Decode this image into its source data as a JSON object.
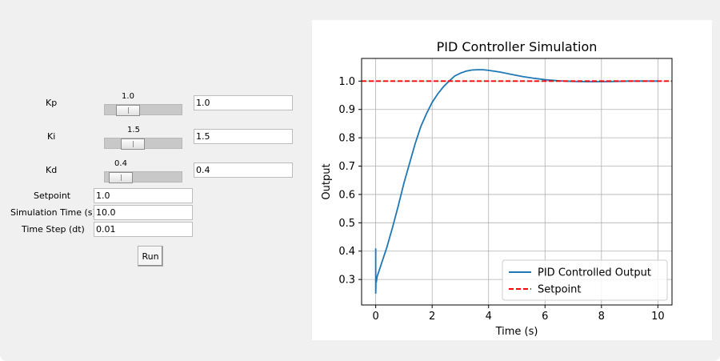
{
  "controls": {
    "kp": {
      "label": "Kp",
      "slider_value": "1.0",
      "entry_value": "1.0"
    },
    "ki": {
      "label": "Ki",
      "slider_value": "1.5",
      "entry_value": "1.5"
    },
    "kd": {
      "label": "Kd",
      "slider_value": "0.4",
      "entry_value": "0.4"
    },
    "setpoint": {
      "label": "Setpoint",
      "value": "1.0"
    },
    "sim_time": {
      "label": "Simulation Time (s)",
      "value": "10.0"
    },
    "time_step": {
      "label": "Time Step (dt)",
      "value": "0.01"
    },
    "run_label": "Run"
  },
  "chart_data": {
    "type": "line",
    "title": "PID Controller Simulation",
    "xlabel": "Time (s)",
    "ylabel": "Output",
    "xlim": [
      -0.5,
      10.5
    ],
    "ylim": [
      0.21,
      1.08
    ],
    "xticks": [
      0,
      2,
      4,
      6,
      8,
      10
    ],
    "yticks": [
      0.3,
      0.4,
      0.5,
      0.6,
      0.7,
      0.8,
      0.9,
      1.0
    ],
    "grid": true,
    "legend_position": "lower-right",
    "series": [
      {
        "name": "PID Controlled Output",
        "color": "#1f77b4",
        "style": "solid",
        "x": [
          0,
          0.0,
          0.01,
          0.02,
          0.05,
          0.1,
          0.2,
          0.3,
          0.4,
          0.5,
          0.6,
          0.8,
          1.0,
          1.2,
          1.4,
          1.6,
          1.8,
          2.0,
          2.2,
          2.4,
          2.6,
          2.8,
          3.0,
          3.2,
          3.4,
          3.6,
          3.8,
          4.0,
          4.4,
          4.8,
          5.2,
          5.6,
          6.0,
          6.5,
          7.0,
          7.5,
          8.0,
          8.5,
          9.0,
          9.5,
          10.0
        ],
        "y": [
          0.41,
          0.25,
          0.3,
          0.29,
          0.31,
          0.325,
          0.355,
          0.385,
          0.415,
          0.45,
          0.485,
          0.56,
          0.64,
          0.71,
          0.78,
          0.84,
          0.885,
          0.925,
          0.955,
          0.98,
          1.0,
          1.018,
          1.028,
          1.035,
          1.039,
          1.04,
          1.04,
          1.038,
          1.032,
          1.024,
          1.016,
          1.01,
          1.005,
          1.001,
          0.999,
          0.998,
          0.998,
          0.999,
          1.0,
          1.0,
          1.0
        ]
      },
      {
        "name": "Setpoint",
        "color": "#ff0000",
        "style": "dashed",
        "x": [
          -0.5,
          10.5
        ],
        "y": [
          1.0,
          1.0
        ]
      }
    ]
  }
}
